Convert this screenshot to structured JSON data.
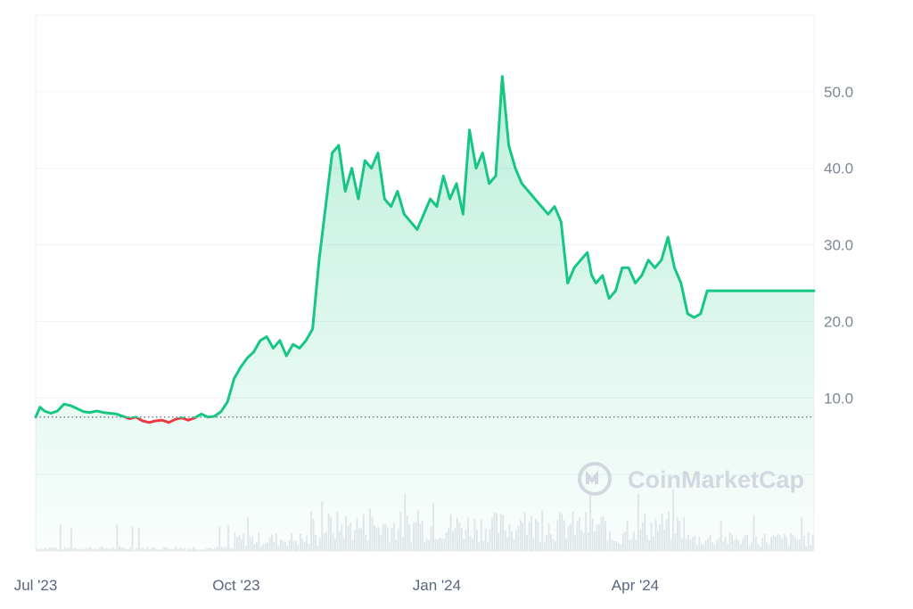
{
  "watermark": {
    "text": "CoinMarketCap",
    "icon": "coinmarketcap-logo-icon"
  },
  "colors": {
    "up": "#16c784",
    "down": "#ea3943",
    "fill_top": "#16c784",
    "grid": "#eff2f5",
    "baseline": "#58667e",
    "volume": "#e4e7ec",
    "axis_text": "#7d8796"
  },
  "chart_data": {
    "type": "area",
    "title": "",
    "xlabel": "",
    "ylabel": "",
    "x_start": "2023-07-01",
    "x_end": "2024-06-22",
    "x_ticks": [
      {
        "date": "2023-07-01",
        "label": "Jul '23"
      },
      {
        "date": "2023-10-01",
        "label": "Oct '23"
      },
      {
        "date": "2024-01-01",
        "label": "Jan '24"
      },
      {
        "date": "2024-04-01",
        "label": "Apr '24"
      }
    ],
    "y_ticks": [
      {
        "value": 10,
        "label": "10.0"
      },
      {
        "value": 20,
        "label": "20.0"
      },
      {
        "value": 30,
        "label": "30.0"
      },
      {
        "value": 40,
        "label": "40.0"
      },
      {
        "value": 50,
        "label": "50.0"
      }
    ],
    "ylim": [
      -10,
      60
    ],
    "reference_value": 7.5,
    "grid": true,
    "legend": "none",
    "series": [
      {
        "x": [
          "2023-07-01",
          "2023-07-03",
          "2023-07-05",
          "2023-07-08",
          "2023-07-11",
          "2023-07-14",
          "2023-07-17",
          "2023-07-20",
          "2023-07-23",
          "2023-07-26",
          "2023-07-29",
          "2023-08-01",
          "2023-08-04",
          "2023-08-07",
          "2023-08-10",
          "2023-08-13",
          "2023-08-16",
          "2023-08-19",
          "2023-08-22",
          "2023-08-25",
          "2023-08-28",
          "2023-08-31",
          "2023-09-03",
          "2023-09-06",
          "2023-09-09",
          "2023-09-12",
          "2023-09-15",
          "2023-09-18",
          "2023-09-21",
          "2023-09-24",
          "2023-09-27",
          "2023-09-30",
          "2023-10-03",
          "2023-10-06",
          "2023-10-09",
          "2023-10-12",
          "2023-10-15",
          "2023-10-18",
          "2023-10-21",
          "2023-10-24",
          "2023-10-27",
          "2023-10-30",
          "2023-11-02",
          "2023-11-05",
          "2023-11-08",
          "2023-11-11",
          "2023-11-14",
          "2023-11-17",
          "2023-11-20",
          "2023-11-23",
          "2023-11-26",
          "2023-11-29",
          "2023-12-02",
          "2023-12-05",
          "2023-12-08",
          "2023-12-11",
          "2023-12-14",
          "2023-12-17",
          "2023-12-20",
          "2023-12-23",
          "2023-12-26",
          "2023-12-29",
          "2024-01-01",
          "2024-01-04",
          "2024-01-07",
          "2024-01-10",
          "2024-01-13",
          "2024-01-16",
          "2024-01-19",
          "2024-01-22",
          "2024-01-25",
          "2024-01-28",
          "2024-01-31",
          "2024-02-03",
          "2024-02-06",
          "2024-02-09",
          "2024-02-12",
          "2024-02-15",
          "2024-02-18",
          "2024-02-21",
          "2024-02-24",
          "2024-02-27",
          "2024-03-01",
          "2024-03-04",
          "2024-03-07",
          "2024-03-10",
          "2024-03-12",
          "2024-03-14",
          "2024-03-17",
          "2024-03-20",
          "2024-03-23",
          "2024-03-26",
          "2024-03-29",
          "2024-04-01",
          "2024-04-04",
          "2024-04-07",
          "2024-04-10",
          "2024-04-13",
          "2024-04-16",
          "2024-04-19",
          "2024-04-22",
          "2024-04-25",
          "2024-04-28",
          "2024-05-01",
          "2024-05-04",
          "2024-05-07",
          "2024-05-10",
          "2024-05-13",
          "2024-05-16",
          "2024-05-19",
          "2024-05-22",
          "2024-05-25",
          "2024-05-28",
          "2024-05-31",
          "2024-06-03",
          "2024-06-06",
          "2024-06-09",
          "2024-06-12",
          "2024-06-15",
          "2024-06-18",
          "2024-06-22"
        ],
        "values": [
          7.5,
          8.8,
          8.3,
          8.0,
          8.3,
          9.2,
          9.0,
          8.6,
          8.2,
          8.1,
          8.3,
          8.1,
          8.0,
          7.9,
          7.6,
          7.3,
          7.5,
          7.0,
          6.8,
          7.0,
          7.1,
          6.8,
          7.2,
          7.4,
          7.1,
          7.4,
          7.9,
          7.5,
          7.6,
          8.2,
          9.5,
          12.5,
          14.0,
          15.2,
          16.0,
          17.5,
          18.0,
          16.5,
          17.5,
          15.5,
          17.0,
          16.5,
          17.5,
          19.0,
          28.0,
          35.0,
          42.0,
          43.0,
          37.0,
          40.0,
          36.0,
          41.0,
          40.0,
          42.0,
          36.0,
          35.0,
          37.0,
          34.0,
          33.0,
          32.0,
          34.0,
          36.0,
          35.0,
          39.0,
          36.0,
          38.0,
          34.0,
          45.0,
          40.0,
          42.0,
          38.0,
          39.0,
          52.0,
          43.0,
          40.0,
          38.0,
          37.0,
          36.0,
          35.0,
          34.0,
          35.0,
          33.0,
          25.0,
          27.0,
          28.0,
          29.0,
          26.0,
          25.0,
          26.0,
          23.0,
          24.0,
          27.0,
          27.0,
          25.0,
          26.0,
          28.0,
          27.0,
          28.0,
          31.0,
          27.0,
          25.0,
          21.0,
          20.5,
          21.0,
          24.0,
          24.0,
          24.0,
          24.0,
          24.0,
          24.0,
          24.0,
          24.0,
          24.0,
          24.0,
          24.0,
          24.0,
          24.0,
          24.0,
          24.0,
          24.0,
          24.0
        ]
      }
    ]
  }
}
